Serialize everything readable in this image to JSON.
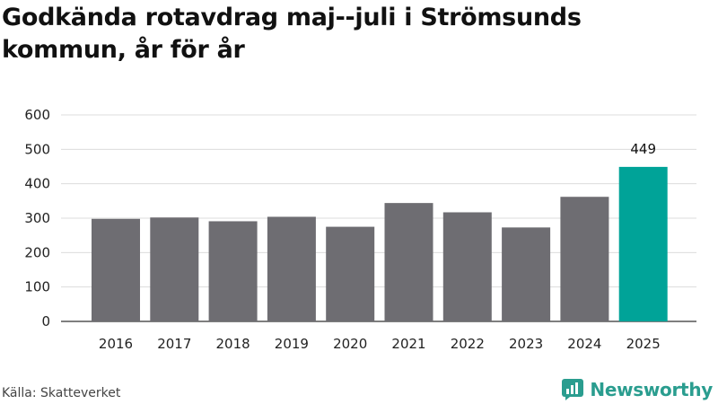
{
  "chart_data": {
    "type": "bar",
    "title": "Godkända rotavdrag maj--juli i Strömsunds kommun, år för år",
    "categories": [
      "2016",
      "2017",
      "2018",
      "2019",
      "2020",
      "2021",
      "2022",
      "2023",
      "2024",
      "2025"
    ],
    "values": [
      298,
      302,
      291,
      304,
      275,
      344,
      317,
      273,
      362,
      449
    ],
    "data_labels": [
      null,
      null,
      null,
      null,
      null,
      null,
      null,
      null,
      null,
      "449"
    ],
    "ylim": [
      0,
      600
    ],
    "yticks": [
      0,
      100,
      200,
      300,
      400,
      500,
      600
    ],
    "grid": true,
    "colors": {
      "default": "#6e6d72",
      "highlight": "#00a398"
    },
    "highlight_index": 9
  },
  "source": "Källa: Skatteverket",
  "brand": {
    "name": "Newsworthy",
    "icon": "newsworthy-logo-icon"
  }
}
